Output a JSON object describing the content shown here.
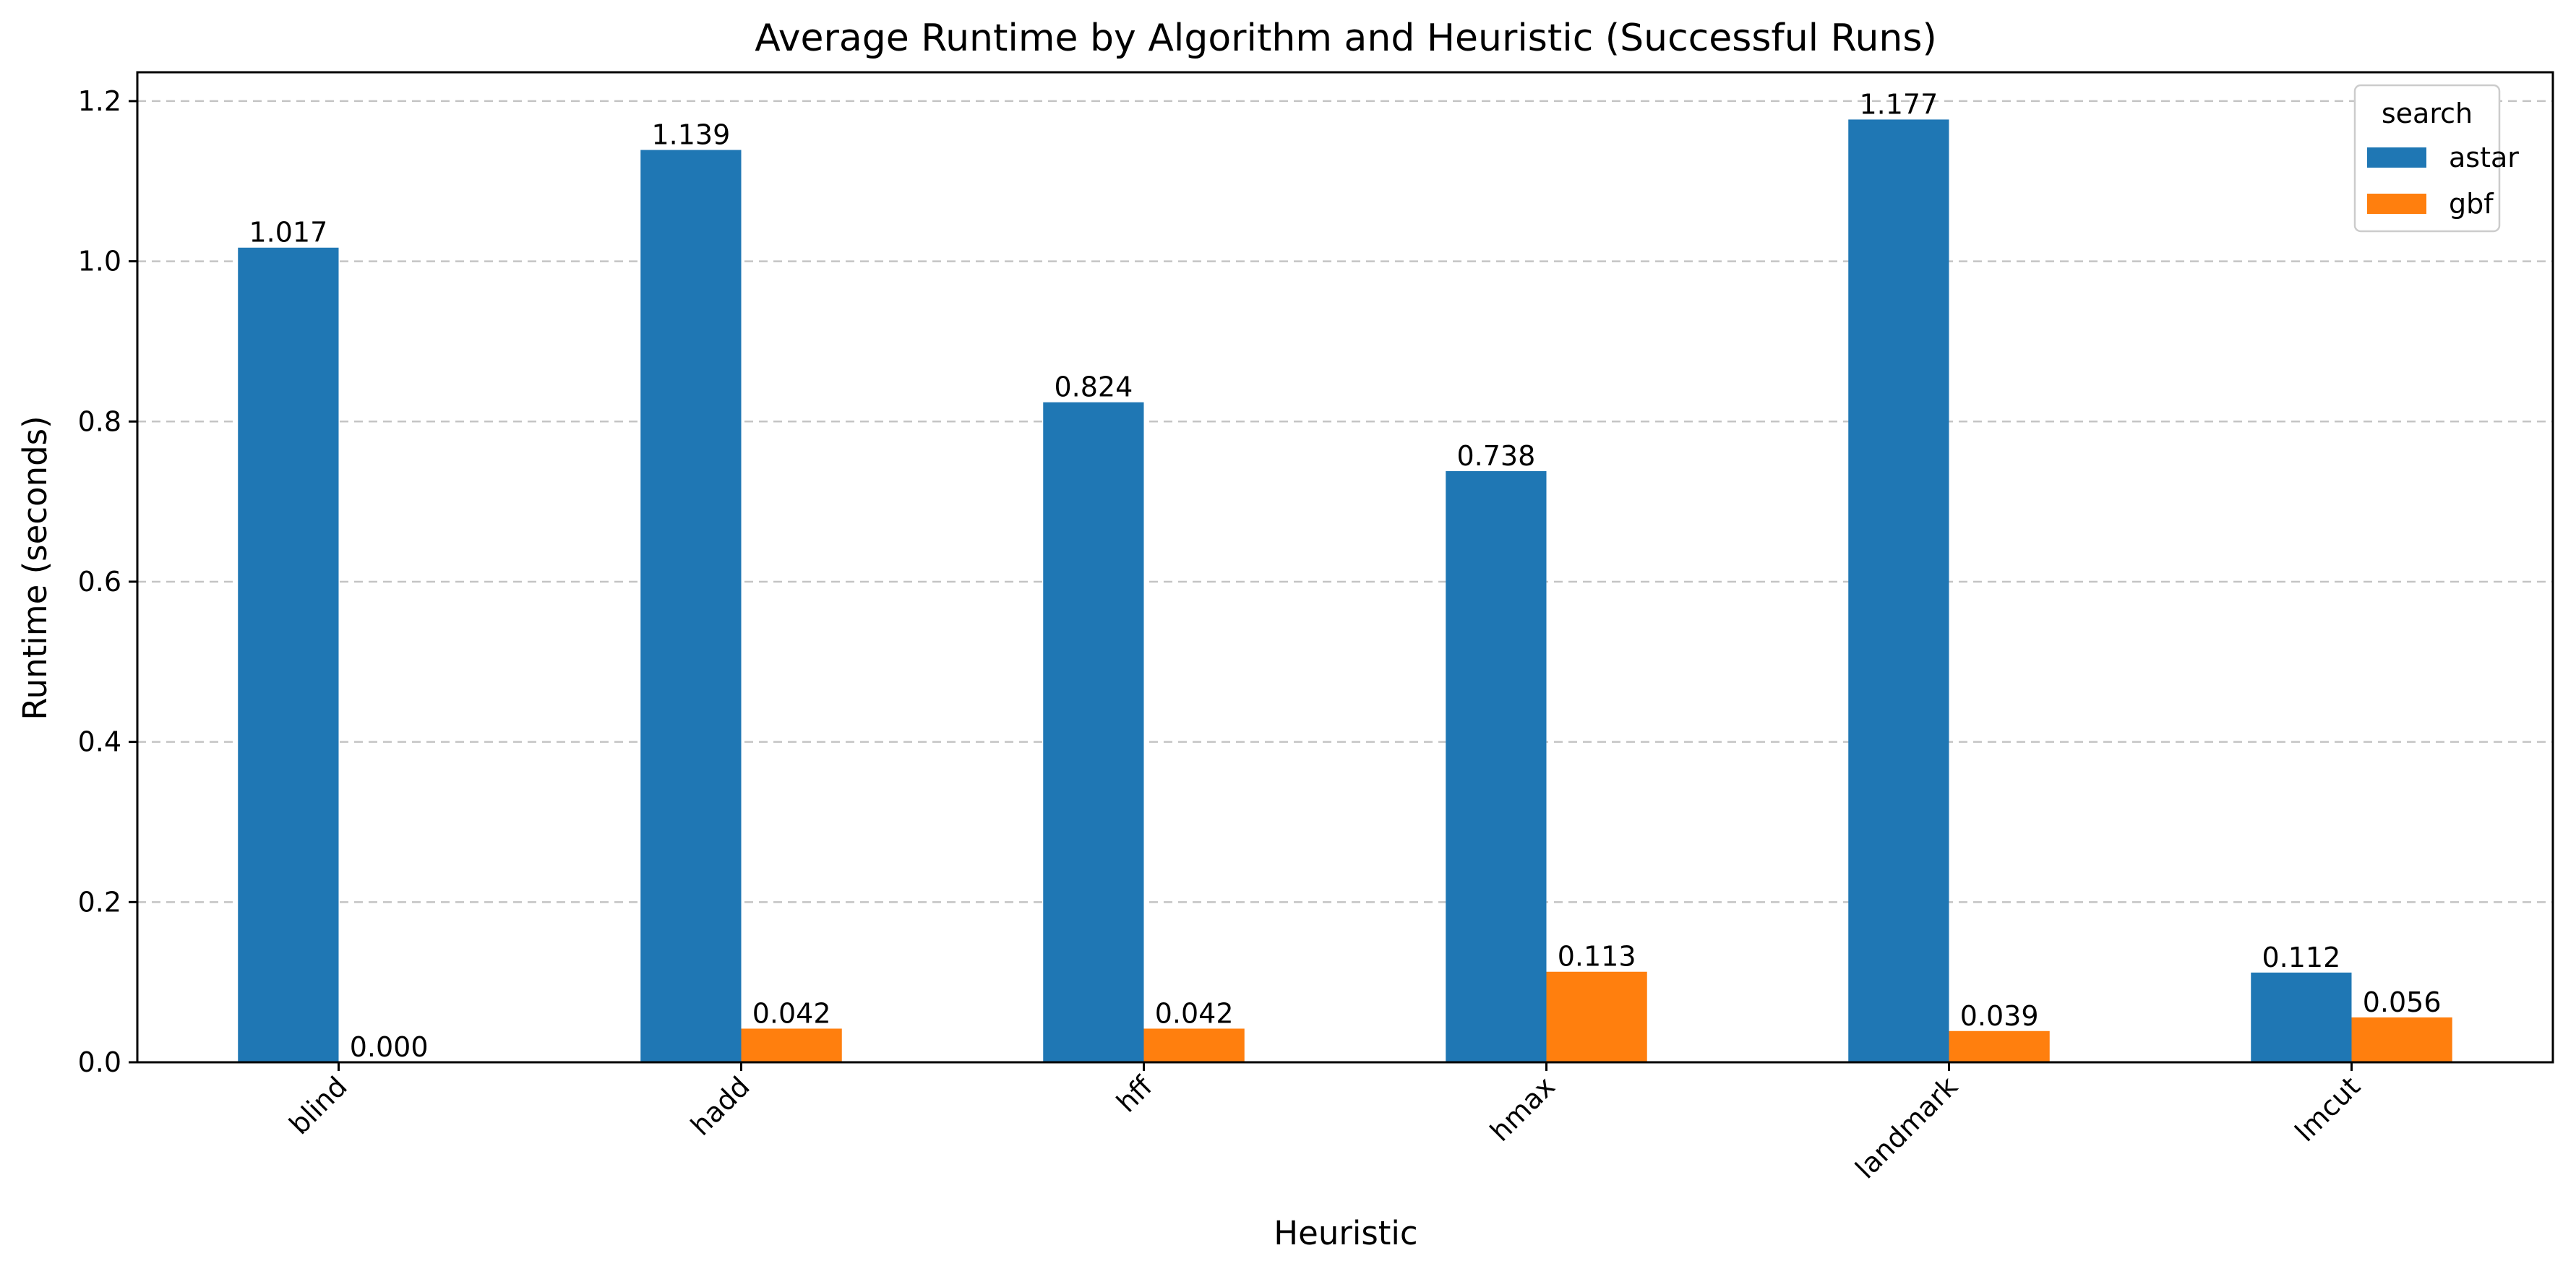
{
  "chart_data": {
    "type": "bar",
    "title": "Average Runtime by Algorithm and Heuristic (Successful Runs)",
    "xlabel": "Heuristic",
    "ylabel": "Runtime (seconds)",
    "categories": [
      "blind",
      "hadd",
      "hff",
      "hmax",
      "landmark",
      "lmcut"
    ],
    "series": [
      {
        "name": "astar",
        "color": "#1f77b4",
        "values": [
          1.017,
          1.139,
          0.824,
          0.738,
          1.177,
          0.112
        ]
      },
      {
        "name": "gbf",
        "color": "#ff7f0e",
        "values": [
          0.0,
          0.042,
          0.042,
          0.113,
          0.039,
          0.056
        ]
      }
    ],
    "data_labels": [
      [
        "1.017",
        "1.139",
        "0.824",
        "0.738",
        "1.177",
        "0.112"
      ],
      [
        "0.000",
        "0.042",
        "0.042",
        "0.113",
        "0.039",
        "0.056"
      ]
    ],
    "ylim": [
      0,
      1.236
    ],
    "yticks": [
      0.0,
      0.2,
      0.4,
      0.6,
      0.8,
      1.0,
      1.2
    ],
    "ytick_labels": [
      "0.0",
      "0.2",
      "0.4",
      "0.6",
      "0.8",
      "1.0",
      "1.2"
    ],
    "grid": "y-dashed",
    "legend": {
      "title": "search",
      "placement": "top-right"
    }
  }
}
